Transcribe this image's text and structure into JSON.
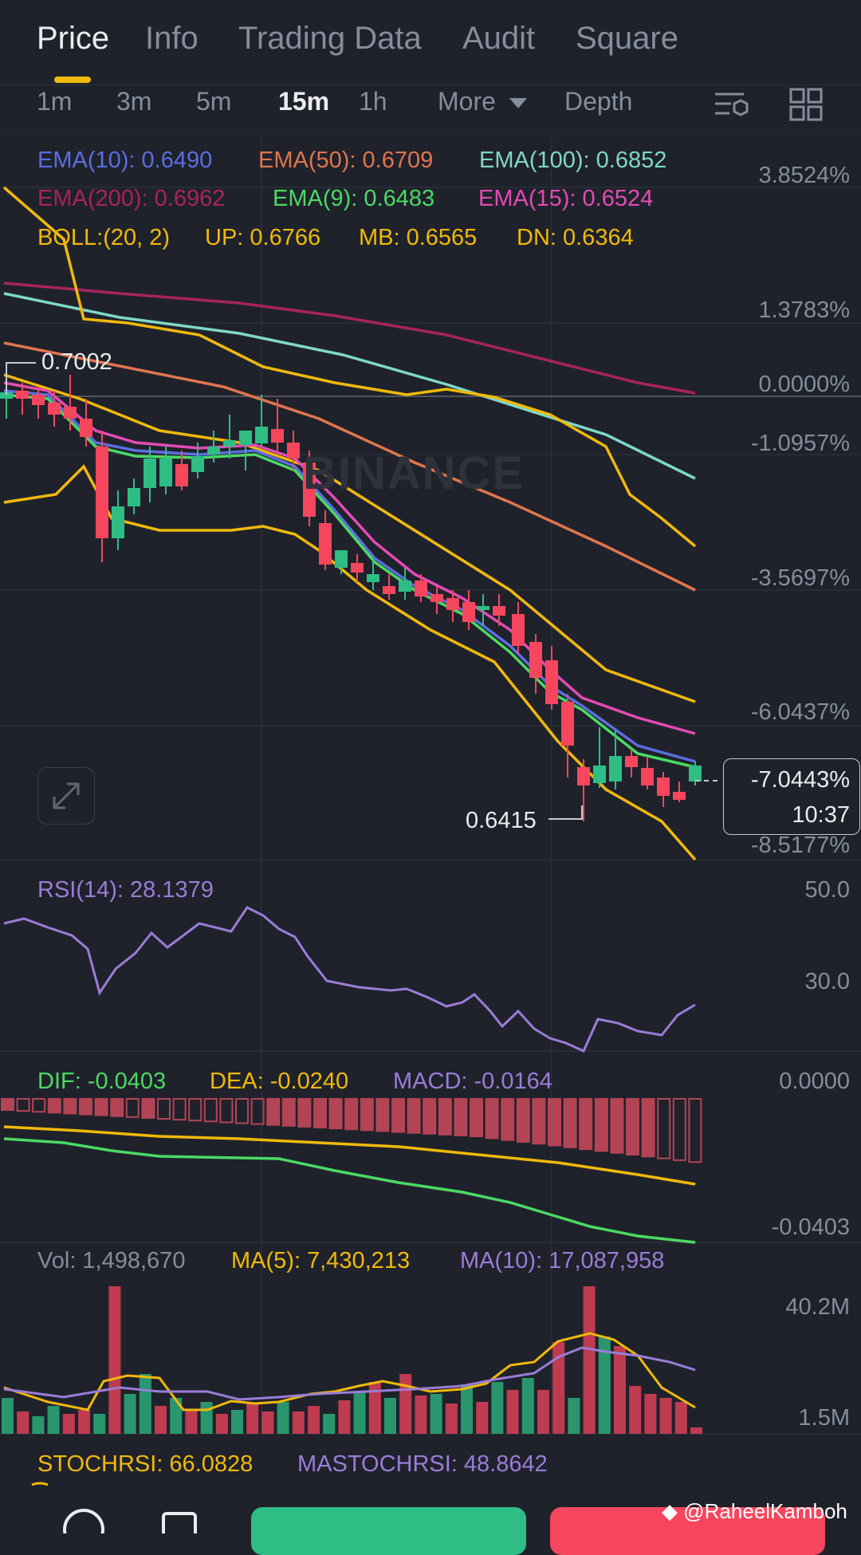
{
  "tabs": [
    "Price",
    "Info",
    "Trading Data",
    "Audit",
    "Square"
  ],
  "active_tab": "Price",
  "timeframes": [
    "1m",
    "3m",
    "5m",
    "15m",
    "1h"
  ],
  "active_timeframe": "15m",
  "more_label": "More",
  "depth_label": "Depth",
  "indicators": {
    "ema10": "EMA(10): 0.6490",
    "ema50": "EMA(50): 0.6709",
    "ema100": "EMA(100): 0.6852",
    "ema200": "EMA(200): 0.6962",
    "ema9": "EMA(9): 0.6483",
    "ema15": "EMA(15): 0.6524",
    "boll": "BOLL:(20, 2)",
    "boll_up": "UP: 0.6766",
    "boll_mb": "MB: 0.6565",
    "boll_dn": "DN: 0.6364"
  },
  "price_axis": [
    "3.8524%",
    "1.3783%",
    "0.0000%",
    "-1.0957%",
    "-3.5697%",
    "-6.0437%",
    "-8.5177%"
  ],
  "high_label": "0.7002",
  "low_label": "0.6415",
  "current_change": "-7.0443%",
  "current_countdown": "10:37",
  "watermark": "BINANCE",
  "rsi": {
    "label": "RSI(14): 28.1379",
    "axis": [
      "50.0",
      "30.0"
    ]
  },
  "macd": {
    "dif": "DIF: -0.0403",
    "dea": "DEA: -0.0240",
    "macd": "MACD: -0.0164",
    "axis": [
      "0.0000",
      "-0.0403"
    ]
  },
  "volume": {
    "vol": "Vol: 1,498,670",
    "ma5": "MA(5): 7,430,213",
    "ma10": "MA(10): 17,087,958",
    "axis": [
      "40.2M",
      "1.5M"
    ]
  },
  "stochrsi": {
    "stoch": "STOCHRSI: 66.0828",
    "mastoch": "MASTOCHRSI: 48.8642"
  },
  "credit": "@RaheelKamboh",
  "colors": {
    "up": "#2ebd85",
    "down": "#f6465d",
    "ema10": "#5b6ee1",
    "ema50": "#e0764f",
    "ema100": "#7fd8c8",
    "ema200": "#a8235e",
    "ema9": "#4cd964",
    "ema15": "#e44bb4",
    "boll": "#f0b90b",
    "rsi": "#9b7cd8"
  }
}
